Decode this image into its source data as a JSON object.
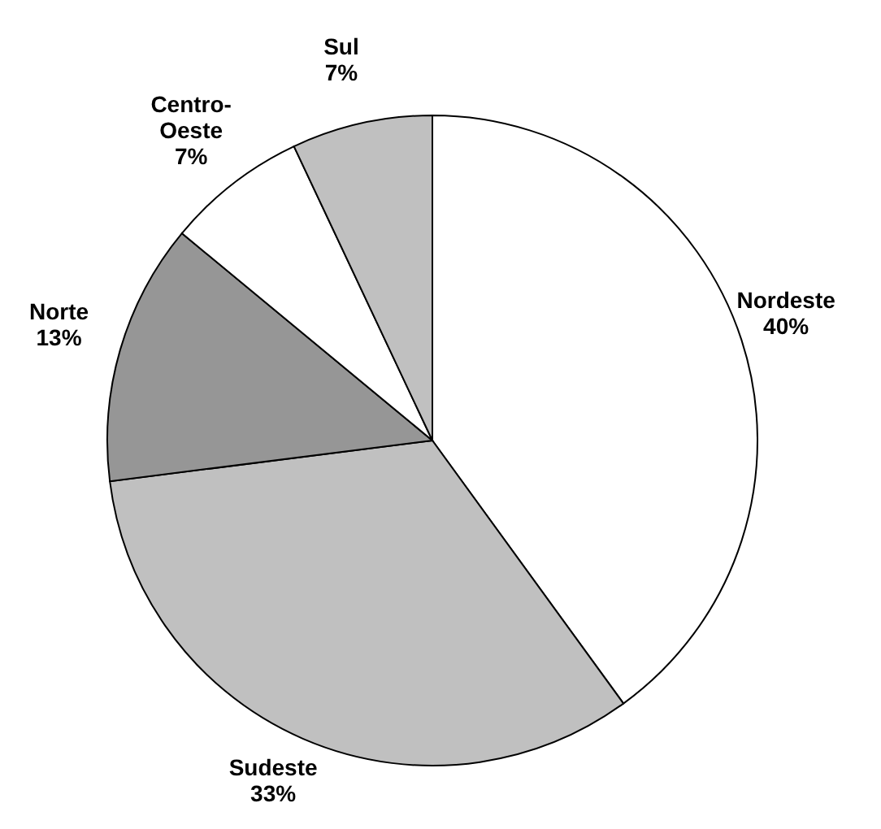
{
  "chart_data": {
    "type": "pie",
    "categories": [
      "Nordeste",
      "Sudeste",
      "Norte",
      "Centro-Oeste",
      "Sul"
    ],
    "values": [
      40,
      33,
      13,
      7,
      7
    ],
    "colors": [
      "#ffffff",
      "#c0c0c0",
      "#969696",
      "#ffffff",
      "#c0c0c0"
    ],
    "value_labels": [
      "40%",
      "33%",
      "13%",
      "7%",
      "7%"
    ],
    "legend": false
  }
}
